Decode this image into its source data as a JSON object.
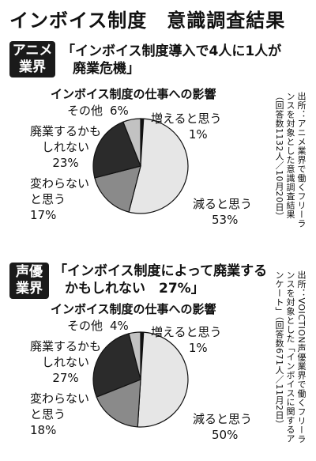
{
  "page": {
    "title": "インボイス制度　意識調査結果"
  },
  "panels": [
    {
      "badge": [
        "アニメ",
        "業界"
      ],
      "headline": [
        "「インボイス制度導入で4人に1人が",
        "廃業危機」"
      ],
      "source": "出所：アニメ業界で働くフリーランスを対象とした意識調査結果（回答数1132人／10月20日）"
    },
    {
      "badge": [
        "声優",
        "業界"
      ],
      "headline": [
        "「インボイス制度によって廃業する",
        "かもしれない　27%」"
      ],
      "source": "出所：VOICTION声優業界で働くフリーランスを対象とした「インボイスに関するアンケート」（回答数671人／11月2日）"
    }
  ],
  "chart_data": [
    {
      "type": "pie",
      "title": "インボイス制度の仕事への影響",
      "slices": [
        {
          "label": [
            "増えると思う"
          ],
          "value": 1,
          "value_label": "1%",
          "color": "#111111"
        },
        {
          "label": [
            "減ると思う"
          ],
          "value": 53,
          "value_label": "53%",
          "color": "#e6e6e6"
        },
        {
          "label": [
            "変わらない",
            "と思う"
          ],
          "value": 17,
          "value_label": "17%",
          "color": "#8a8a8a"
        },
        {
          "label": [
            "廃業するかも",
            "しれない"
          ],
          "value": 23,
          "value_label": "23%",
          "color": "#2b2b2b"
        },
        {
          "label": [
            "その他"
          ],
          "value": 6,
          "value_label": "6%",
          "color": "#c2c2c2"
        }
      ]
    },
    {
      "type": "pie",
      "title": "インボイス制度の仕事への影響",
      "slices": [
        {
          "label": [
            "増えると思う"
          ],
          "value": 1,
          "value_label": "1%",
          "color": "#111111"
        },
        {
          "label": [
            "減ると思う"
          ],
          "value": 50,
          "value_label": "50%",
          "color": "#e6e6e6"
        },
        {
          "label": [
            "変わらない",
            "と思う"
          ],
          "value": 18,
          "value_label": "18%",
          "color": "#8a8a8a"
        },
        {
          "label": [
            "廃業するかも",
            "しれない"
          ],
          "value": 27,
          "value_label": "27%",
          "color": "#2b2b2b"
        },
        {
          "label": [
            "その他"
          ],
          "value": 4,
          "value_label": "4%",
          "color": "#c2c2c2"
        }
      ]
    }
  ]
}
